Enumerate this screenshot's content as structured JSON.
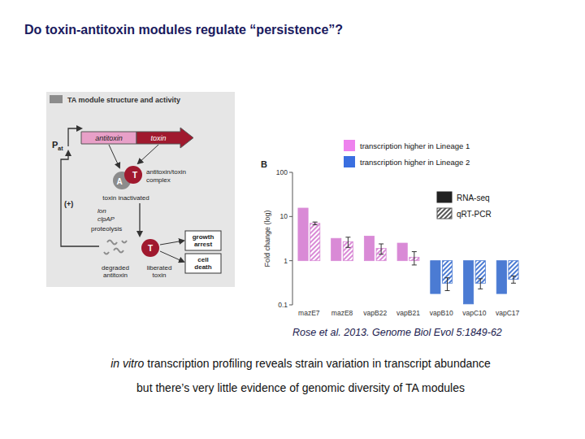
{
  "slide": {
    "title": "Do toxin-antitoxin modules regulate “persistence”?",
    "citation": "Rose et al. 2013. Genome Biol Evol 5:1849-62",
    "caption": {
      "italic": "in vitro",
      "rest": " transcription profiling reveals strain variation in transcript abundance",
      "line2": "but there’s very little evidence of genomic diversity of TA modules"
    }
  },
  "diagram": {
    "title": "TA module structure and activity",
    "promoter": "P",
    "promoter_sub": "at",
    "antitoxin": "antitoxin",
    "toxin": "toxin",
    "A": "A",
    "T": "T",
    "complex": [
      "antitoxin/toxin",
      "complex"
    ],
    "inactivated": "toxin inactivated",
    "plus": "(+)",
    "proteases": [
      "lon",
      "clpAP"
    ],
    "proteolysis": "proteolysis",
    "growth": [
      "growth",
      "arrest"
    ],
    "death": [
      "cell",
      "death"
    ],
    "degraded": [
      "degraded",
      "antitoxin"
    ],
    "liberated": [
      "liberated",
      "toxin"
    ]
  },
  "chart_data": {
    "type": "bar",
    "panel_label": "B",
    "y_label": "Fold change (log)",
    "categories": [
      "mazE7",
      "mazE8",
      "vapB22",
      "vapB21",
      "vapB10",
      "vapC10",
      "vapC17"
    ],
    "series": [
      {
        "name": "RNA-seq",
        "color": "#222222",
        "marker": "solid",
        "colors": [
          "#d98ad6",
          "#d98ad6",
          "#d98ad6",
          "#d98ad6",
          "#4b7bd3",
          "#4b7bd3",
          "#4b7bd3"
        ],
        "values": [
          15.5,
          3.2,
          3.6,
          2.5,
          0.18,
          0.105,
          0.18
        ]
      },
      {
        "name": "qRT-PCR",
        "color": "#555555",
        "marker": "hatched",
        "colors": [
          "#d98ad6",
          "#d98ad6",
          "#d98ad6",
          "#d98ad6",
          "#4b7bd3",
          "#4b7bd3",
          "#4b7bd3"
        ],
        "values": [
          7,
          2.7,
          1.9,
          1.2,
          0.31,
          0.31,
          0.38
        ],
        "errors": [
          0.5,
          0.7,
          0.5,
          0.4,
          0.1,
          0.08,
          0.07
        ]
      }
    ],
    "ylim": [
      0.1,
      100
    ],
    "yticks": [
      0.1,
      1,
      10,
      100
    ],
    "log": "y",
    "legend": "top-right",
    "annotations": [
      {
        "text": "transcription higher in Lineage 1",
        "color": "#ee82ee"
      },
      {
        "text": "transcription higher in Lineage 2",
        "color": "#3a6fe0"
      }
    ]
  }
}
